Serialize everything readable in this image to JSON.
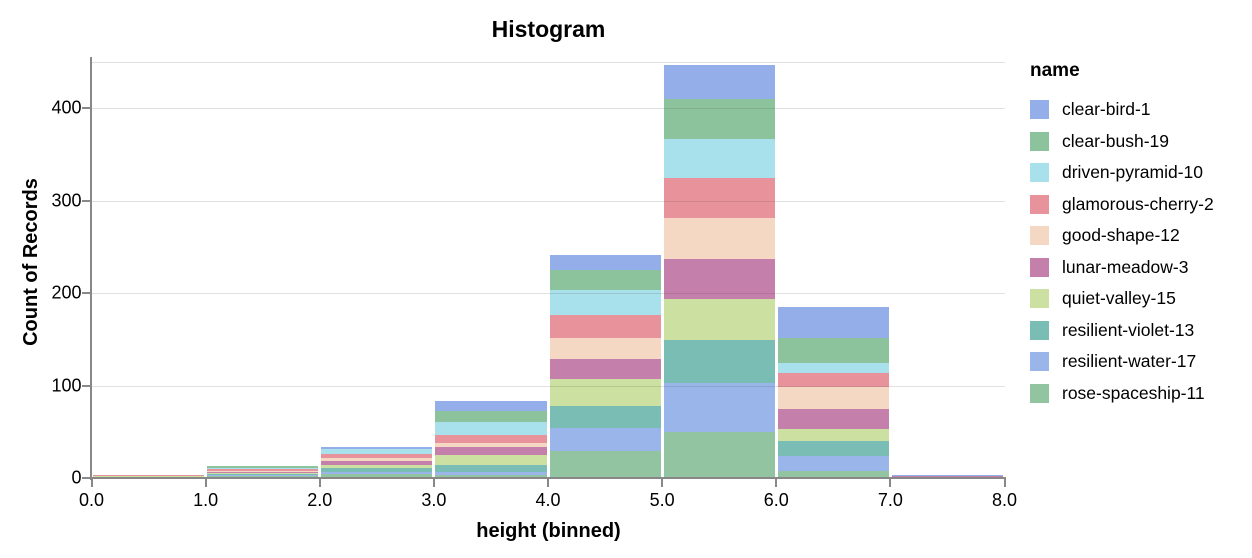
{
  "chart": {
    "title": "Histogram",
    "xlabel": "height (binned)",
    "ylabel": "Count of Records",
    "legend_title": "name"
  },
  "chart_data": {
    "type": "bar",
    "subtype": "stacked-histogram",
    "title": "Histogram",
    "xlabel": "height (binned)",
    "ylabel": "Count of Records",
    "legend_title": "name",
    "legend_position": "right",
    "grid": true,
    "bin_edges": [
      0,
      1,
      2,
      3,
      4,
      5,
      6,
      7,
      8
    ],
    "x_tick_labels": [
      "0.0",
      "1.0",
      "2.0",
      "3.0",
      "4.0",
      "5.0",
      "6.0",
      "7.0",
      "8.0"
    ],
    "y_ticks": [
      0,
      100,
      200,
      300,
      400
    ],
    "extra_gridline": 450,
    "ylim": [
      0,
      452
    ],
    "xlim": [
      0,
      8
    ],
    "bin_totals": [
      3,
      13,
      34,
      83,
      241,
      447,
      185,
      3
    ],
    "stack_note": "stacked bottom-to-top in reverse legend order (last legend entry at bottom)",
    "series": [
      {
        "name": "clear-bird-1",
        "color": "#93aee8",
        "values": [
          0,
          0,
          3,
          11,
          16,
          37,
          34,
          1
        ]
      },
      {
        "name": "clear-bush-19",
        "color": "#8cc39c",
        "values": [
          0,
          2,
          0,
          11,
          22,
          43,
          27,
          0
        ]
      },
      {
        "name": "driven-pyramid-10",
        "color": "#a8e0ec",
        "values": [
          0,
          1,
          5,
          14,
          27,
          43,
          10,
          0
        ]
      },
      {
        "name": "glamorous-cherry-2",
        "color": "#e8939c",
        "values": [
          1,
          2,
          4,
          9,
          25,
          43,
          16,
          0
        ]
      },
      {
        "name": "good-shape-12",
        "color": "#f4d8c4",
        "values": [
          0,
          1,
          4,
          5,
          22,
          44,
          23,
          0
        ]
      },
      {
        "name": "lunar-meadow-3",
        "color": "#c480aa",
        "values": [
          0,
          1,
          4,
          8,
          22,
          43,
          22,
          2
        ]
      },
      {
        "name": "quiet-valley-15",
        "color": "#cce0a2",
        "values": [
          1,
          2,
          3,
          11,
          29,
          45,
          13,
          0
        ]
      },
      {
        "name": "resilient-violet-13",
        "color": "#79bdb5",
        "values": [
          0,
          1,
          4,
          8,
          24,
          46,
          16,
          0
        ]
      },
      {
        "name": "resilient-water-17",
        "color": "#9ab5e9",
        "values": [
          0,
          1,
          3,
          3,
          25,
          53,
          16,
          0
        ]
      },
      {
        "name": "rose-spaceship-11",
        "color": "#92c4a2",
        "values": [
          1,
          2,
          4,
          3,
          29,
          50,
          8,
          0
        ]
      }
    ],
    "colors": {
      "axis_domain": "#888888",
      "gridline": "#dddddd",
      "text": "#000000"
    }
  }
}
